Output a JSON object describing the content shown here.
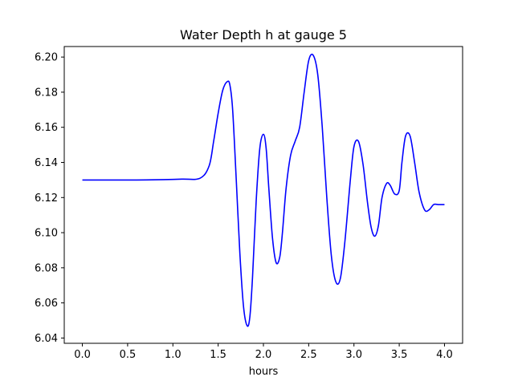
{
  "chart_data": {
    "type": "line",
    "title": "Water Depth h at gauge 5",
    "xlabel": "hours",
    "ylabel": "",
    "xlim": [
      -0.2,
      4.2
    ],
    "ylim": [
      6.037,
      6.206
    ],
    "xticks": [
      0.0,
      0.5,
      1.0,
      1.5,
      2.0,
      2.5,
      3.0,
      3.5,
      4.0
    ],
    "xtick_labels": [
      "0.0",
      "0.5",
      "1.0",
      "1.5",
      "2.0",
      "2.5",
      "3.0",
      "3.5",
      "4.0"
    ],
    "yticks": [
      6.04,
      6.06,
      6.08,
      6.1,
      6.12,
      6.14,
      6.16,
      6.18,
      6.2
    ],
    "ytick_labels": [
      "6.04",
      "6.06",
      "6.08",
      "6.10",
      "6.12",
      "6.14",
      "6.16",
      "6.18",
      "6.20"
    ],
    "grid": false,
    "series": [
      {
        "color": "#0000ff",
        "x": [
          0.0,
          0.3,
          0.6,
          0.9,
          1.1,
          1.3,
          1.4,
          1.45,
          1.5,
          1.55,
          1.6,
          1.63,
          1.66,
          1.7,
          1.74,
          1.78,
          1.82,
          1.85,
          1.88,
          1.92,
          1.96,
          2.0,
          2.03,
          2.06,
          2.1,
          2.14,
          2.18,
          2.21,
          2.25,
          2.3,
          2.35,
          2.4,
          2.45,
          2.5,
          2.55,
          2.6,
          2.65,
          2.7,
          2.75,
          2.8,
          2.85,
          2.9,
          2.96,
          3.0,
          3.05,
          3.1,
          3.15,
          3.19,
          3.23,
          3.27,
          3.31,
          3.36,
          3.4,
          3.45,
          3.5,
          3.53,
          3.57,
          3.62,
          3.67,
          3.72,
          3.78,
          3.83,
          3.88,
          3.93,
          3.97,
          4.0
        ],
        "y": [
          6.13,
          6.13,
          6.13,
          6.1302,
          6.1305,
          6.131,
          6.138,
          6.152,
          6.168,
          6.181,
          6.186,
          6.184,
          6.17,
          6.13,
          6.088,
          6.058,
          6.047,
          6.052,
          6.075,
          6.118,
          6.148,
          6.156,
          6.148,
          6.125,
          6.097,
          6.083,
          6.086,
          6.1,
          6.125,
          6.144,
          6.152,
          6.16,
          6.18,
          6.198,
          6.201,
          6.19,
          6.16,
          6.12,
          6.087,
          6.072,
          6.074,
          6.095,
          6.13,
          6.149,
          6.152,
          6.139,
          6.117,
          6.103,
          6.098,
          6.104,
          6.12,
          6.128,
          6.127,
          6.122,
          6.124,
          6.14,
          6.155,
          6.155,
          6.14,
          6.123,
          6.113,
          6.113,
          6.116,
          6.116,
          6.116,
          6.116
        ]
      }
    ]
  }
}
